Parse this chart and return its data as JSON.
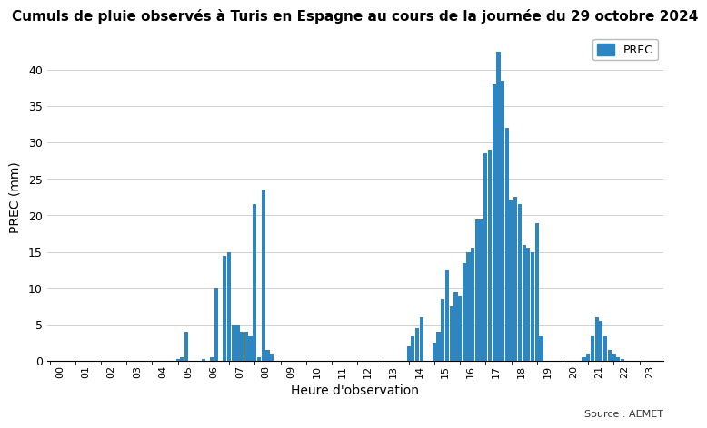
{
  "title": "Cumuls de pluie observés à Turis en Espagne au cours de la journée du 29 octobre 2024",
  "xlabel": "Heure d'observation",
  "ylabel": "PREC (mm)",
  "source": "Source : AEMET",
  "legend_label": "PREC",
  "bar_color": "#2e86c1",
  "background_color": "#ffffff",
  "ylim": [
    0,
    45
  ],
  "yticks": [
    0,
    5,
    10,
    15,
    20,
    25,
    30,
    35,
    40
  ],
  "hours": [
    "00",
    "01",
    "02",
    "03",
    "04",
    "05",
    "06",
    "07",
    "08",
    "09",
    "10",
    "11",
    "12",
    "13",
    "14",
    "15",
    "16",
    "17",
    "18",
    "19",
    "20",
    "21",
    "22",
    "23"
  ],
  "bar_values": [
    0.0,
    0.0,
    0.0,
    0.0,
    0.0,
    0.0,
    0.0,
    0.0,
    0.0,
    0.0,
    0.0,
    0.0,
    0.0,
    0.0,
    0.0,
    0.0,
    0.0,
    0.0,
    0.0,
    0.0,
    0.0,
    0.0,
    0.0,
    0.0,
    0.0,
    0.0,
    0.0,
    0.0,
    0.0,
    0.0,
    0.3,
    0.5,
    4.0,
    0.0,
    0.0,
    0.0,
    0.3,
    0.0,
    0.5,
    10.0,
    0.0,
    14.5,
    15.0,
    5.0,
    5.0,
    4.0,
    4.0,
    3.5,
    21.5,
    0.5,
    23.5,
    1.5,
    1.0,
    0.0,
    0.0,
    0.0,
    0.0,
    0.0,
    0.0,
    0.0,
    0.0,
    0.0,
    0.0,
    0.0,
    0.0,
    0.0,
    0.0,
    0.0,
    0.0,
    0.0,
    0.0,
    0.0,
    0.0,
    0.0,
    0.0,
    0.0,
    0.0,
    0.0,
    0.0,
    0.0,
    0.0,
    0.0,
    0.0,
    0.0,
    2.0,
    3.5,
    4.5,
    6.0,
    0.0,
    0.0,
    2.5,
    4.0,
    8.5,
    12.5,
    7.5,
    9.5,
    9.0,
    13.5,
    15.0,
    15.5,
    19.5,
    19.5,
    28.5,
    29.0,
    38.0,
    42.5,
    38.5,
    32.0,
    22.0,
    22.5,
    21.5,
    16.0,
    15.5,
    15.0,
    19.0,
    3.5,
    0.0,
    0.0,
    0.0,
    0.0,
    0.0,
    0.0,
    0.0,
    0.0,
    0.0,
    0.5,
    1.0,
    3.5,
    6.0,
    5.5,
    3.5,
    1.5,
    1.0,
    0.5,
    0.3,
    0.0,
    0.0,
    0.0,
    0.0,
    0.0,
    0.0,
    0.0,
    0.0,
    0.0
  ]
}
